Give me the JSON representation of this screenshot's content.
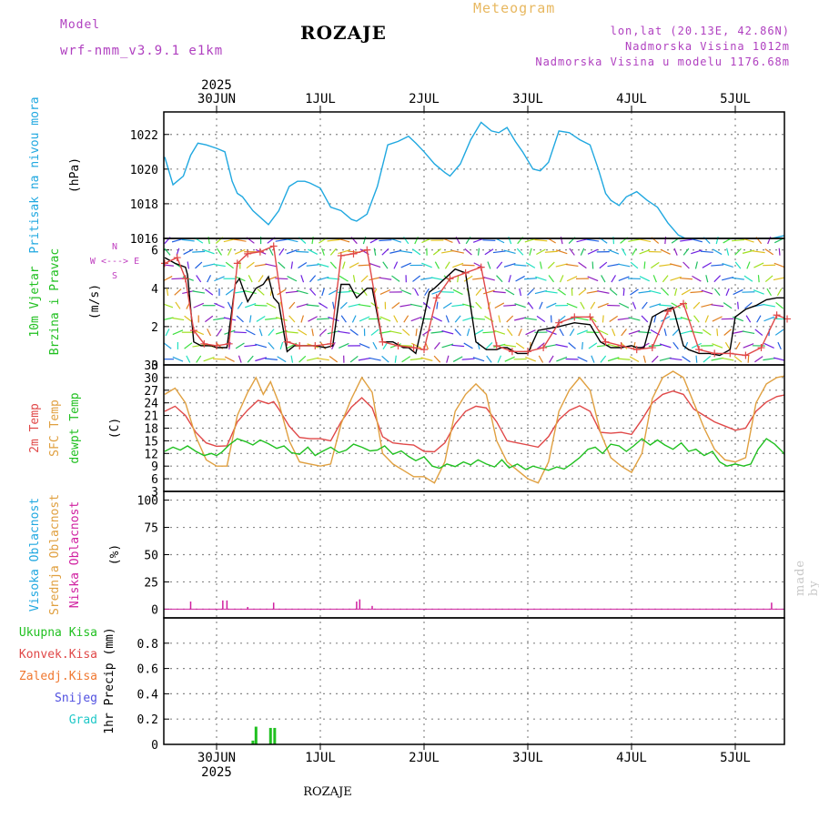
{
  "header": {
    "model_label": "Model",
    "model_name": "wrf-nmm_v3.9.1 e1km",
    "station": "ROZAJE",
    "product": "Meteogram",
    "coords": "lon,lat (20.13E, 42.86N)",
    "altitude": "Nadmorska Visina 1012m",
    "model_altitude": "Nadmorska Visina u modelu 1176.68m",
    "credit": "made by Angel"
  },
  "time_axis": {
    "year": "2025",
    "day_labels": [
      "30JUN",
      "1JUL",
      "2JUL",
      "3JUL",
      "4JUL",
      "5JUL"
    ]
  },
  "footer": {
    "station": "ROZAJE"
  },
  "colors": {
    "pressure": "#20a8e0",
    "t2m": "#e04848",
    "sfc": "#e0a040",
    "dewpoint": "#20c020",
    "high_cloud": "#20a8e0",
    "mid_cloud": "#e0a040",
    "low_cloud": "#d020a0",
    "total_precip": "#20c020",
    "conv_precip": "#e04848",
    "frz_precip": "#f07830",
    "snow": "#5050e0",
    "hail": "#20c8c8",
    "wind_label": "#20c020",
    "compass": "#c040c0"
  },
  "chart_data": [
    {
      "id": "pressure",
      "type": "line",
      "ylabel_lines": [
        "Pritisak na nivou mora",
        "(hPa)"
      ],
      "ylim": [
        1016,
        1023.3
      ],
      "yticks": [
        1016,
        1018,
        1020,
        1022
      ],
      "series": [
        {
          "color_key": "pressure",
          "x": [
            -0.5,
            -0.42,
            -0.38,
            -0.32,
            -0.25,
            -0.18,
            -0.1,
            0,
            0.08,
            0.15,
            0.2,
            0.25,
            0.35,
            0.5,
            0.6,
            0.7,
            0.78,
            0.85,
            0.9,
            1.0,
            1.1,
            1.2,
            1.3,
            1.35,
            1.45,
            1.55,
            1.65,
            1.75,
            1.85,
            1.92,
            2.0,
            2.1,
            2.2,
            2.25,
            2.35,
            2.45,
            2.55,
            2.65,
            2.72,
            2.8,
            2.88,
            2.95,
            3.05,
            3.12,
            3.2,
            3.3,
            3.4,
            3.5,
            3.6,
            3.68,
            3.75,
            3.8,
            3.88,
            3.95,
            4.05,
            4.15,
            4.25,
            4.35,
            4.45,
            4.52,
            4.6,
            4.7,
            4.75,
            4.85,
            4.95,
            5.05,
            5.15,
            5.25,
            5.35,
            5.5
          ],
          "y": [
            1020.7,
            1019.1,
            1019.3,
            1019.6,
            1020.8,
            1021.5,
            1021.4,
            1021.2,
            1021.0,
            1019.3,
            1018.6,
            1018.4,
            1017.6,
            1016.8,
            1017.6,
            1019.0,
            1019.3,
            1019.3,
            1019.2,
            1018.9,
            1017.8,
            1017.6,
            1017.1,
            1017.0,
            1017.4,
            1019.0,
            1021.4,
            1021.6,
            1021.9,
            1021.5,
            1021.0,
            1020.3,
            1019.8,
            1019.6,
            1020.3,
            1021.7,
            1022.7,
            1022.2,
            1022.1,
            1022.4,
            1021.6,
            1021.0,
            1020.0,
            1019.9,
            1020.4,
            1022.2,
            1022.1,
            1021.7,
            1021.4,
            1020.0,
            1018.6,
            1018.2,
            1017.9,
            1018.4,
            1018.7,
            1018.2,
            1017.8,
            1016.9,
            1016.2,
            1016.0,
            1016.0,
            1016.0,
            1016.0,
            1016.0,
            1016.0,
            1016.0,
            1016.0,
            1016.0,
            1016.0,
            1016.2
          ]
        }
      ]
    },
    {
      "id": "wind",
      "type": "line",
      "ylabel_lines": [
        "10m Vjetar",
        "Brzina i Pravac",
        "(m/s)"
      ],
      "compass": [
        "N",
        "W <---> E",
        "S"
      ],
      "ylim": [
        0,
        6.6
      ],
      "yticks": [
        0,
        2,
        4,
        6
      ],
      "barb_levels": [
        0.3,
        1.0,
        1.7,
        2.4,
        3.1,
        3.8,
        4.5,
        5.2,
        5.9,
        6.5
      ],
      "series": [
        {
          "color_key": "black",
          "x": [
            -0.5,
            -0.4,
            -0.3,
            -0.28,
            -0.22,
            -0.15,
            -0.05,
            0,
            0.1,
            0.18,
            0.22,
            0.3,
            0.38,
            0.45,
            0.5,
            0.55,
            0.6,
            0.68,
            0.75,
            0.85,
            0.95,
            1.05,
            1.12,
            1.2,
            1.28,
            1.35,
            1.45,
            1.5,
            1.6,
            1.7,
            1.8,
            1.85,
            1.92,
            2.0,
            2.05,
            2.1,
            2.2,
            2.3,
            2.4,
            2.5,
            2.6,
            2.7,
            2.75,
            2.8,
            2.9,
            3.0,
            3.1,
            3.2,
            3.3,
            3.45,
            3.6,
            3.7,
            3.8,
            3.9,
            4.0,
            4.05,
            4.12,
            4.2,
            4.3,
            4.4,
            4.5,
            4.55,
            4.65,
            4.75,
            4.85,
            4.95,
            5.0,
            5.1,
            5.2,
            5.3,
            5.4,
            5.5
          ],
          "y": [
            5.6,
            5.3,
            5.1,
            4.7,
            1.2,
            1.0,
            1.0,
            0.9,
            0.9,
            4.2,
            4.5,
            3.3,
            4.0,
            4.2,
            4.6,
            3.5,
            3.2,
            0.7,
            1.0,
            1.0,
            1.0,
            0.9,
            1.0,
            4.2,
            4.2,
            3.5,
            4.0,
            4.0,
            1.2,
            1.2,
            0.9,
            0.9,
            0.6,
            2.5,
            3.8,
            4.0,
            4.5,
            5.0,
            4.8,
            1.2,
            0.8,
            0.8,
            0.9,
            0.9,
            0.6,
            0.6,
            1.8,
            1.9,
            2.0,
            2.2,
            2.1,
            1.2,
            0.9,
            0.9,
            1.0,
            0.9,
            0.9,
            2.5,
            2.8,
            3.0,
            1.0,
            0.8,
            0.6,
            0.6,
            0.5,
            0.8,
            2.5,
            2.9,
            3.1,
            3.4,
            3.5,
            3.5
          ]
        },
        {
          "color_key": "t2m",
          "x": [
            -0.5,
            -0.38,
            -0.3,
            -0.22,
            -0.12,
            0,
            0.12,
            0.2,
            0.3,
            0.42,
            0.55,
            0.68,
            0.8,
            0.95,
            1.1,
            1.2,
            1.32,
            1.45,
            1.6,
            1.75,
            1.9,
            2.0,
            2.12,
            2.25,
            2.4,
            2.55,
            2.7,
            2.85,
            3.0,
            3.15,
            3.3,
            3.45,
            3.6,
            3.75,
            3.9,
            4.05,
            4.2,
            4.35,
            4.5,
            4.65,
            4.8,
            4.95,
            5.1,
            5.25,
            5.4,
            5.5
          ],
          "y": [
            5.3,
            5.6,
            4.5,
            1.8,
            1.1,
            1.0,
            1.1,
            5.3,
            5.8,
            5.9,
            6.2,
            1.2,
            1.0,
            1.0,
            1.1,
            5.7,
            5.8,
            6.0,
            1.2,
            1.0,
            0.9,
            0.8,
            3.5,
            4.5,
            4.8,
            5.1,
            1.0,
            0.7,
            0.7,
            0.9,
            2.2,
            2.5,
            2.5,
            1.2,
            1.0,
            0.8,
            0.9,
            2.8,
            3.2,
            0.8,
            0.6,
            0.6,
            0.5,
            0.9,
            2.6,
            2.4
          ]
        }
      ]
    },
    {
      "id": "temperature",
      "type": "line",
      "ylabel_lines": [
        "2m Temp",
        "SFC Temp",
        "dewpt Temp",
        "(C)"
      ],
      "ylim": [
        3,
        33
      ],
      "yticks": [
        3,
        6,
        9,
        12,
        15,
        18,
        21,
        24,
        27,
        30,
        33
      ],
      "series": [
        {
          "name": "2m Temp",
          "color_key": "t2m",
          "x": [
            -0.5,
            -0.4,
            -0.3,
            -0.2,
            -0.1,
            0,
            0.1,
            0.2,
            0.3,
            0.4,
            0.5,
            0.55,
            0.6,
            0.7,
            0.8,
            0.9,
            1.0,
            1.1,
            1.2,
            1.3,
            1.4,
            1.5,
            1.6,
            1.7,
            1.8,
            1.9,
            2.0,
            2.1,
            2.2,
            2.3,
            2.4,
            2.5,
            2.6,
            2.7,
            2.8,
            2.9,
            3.0,
            3.1,
            3.2,
            3.3,
            3.4,
            3.5,
            3.6,
            3.7,
            3.8,
            3.9,
            4.0,
            4.1,
            4.2,
            4.3,
            4.4,
            4.5,
            4.6,
            4.7,
            4.8,
            4.9,
            5.0,
            5.1,
            5.2,
            5.3,
            5.4,
            5.5
          ],
          "y": [
            22,
            23.2,
            21,
            17,
            14.5,
            13.7,
            13.8,
            19.5,
            22.3,
            24.6,
            23.8,
            24.3,
            22.5,
            18.5,
            15.8,
            15.5,
            15.5,
            15,
            19.5,
            23,
            25.2,
            22.8,
            16,
            14.5,
            14.2,
            14,
            12.5,
            12.4,
            14.5,
            19,
            22,
            23.2,
            22.8,
            19.5,
            15,
            14.5,
            14,
            13.5,
            16,
            20,
            22.2,
            23.3,
            22,
            17,
            16.8,
            17,
            16.5,
            20,
            24,
            26,
            26.8,
            26,
            22.5,
            21,
            19.5,
            18.5,
            17.5,
            18,
            22,
            24.2,
            25.5,
            26
          ]
        },
        {
          "name": "SFC Temp",
          "color_key": "sfc",
          "x": [
            -0.5,
            -0.4,
            -0.3,
            -0.2,
            -0.1,
            0,
            0.1,
            0.2,
            0.3,
            0.38,
            0.45,
            0.52,
            0.6,
            0.7,
            0.8,
            0.9,
            1.0,
            1.1,
            1.2,
            1.3,
            1.4,
            1.5,
            1.6,
            1.7,
            1.8,
            1.9,
            2.0,
            2.1,
            2.2,
            2.3,
            2.4,
            2.5,
            2.6,
            2.7,
            2.8,
            2.9,
            3.0,
            3.1,
            3.2,
            3.3,
            3.4,
            3.5,
            3.6,
            3.7,
            3.8,
            3.9,
            4.0,
            4.1,
            4.2,
            4.3,
            4.4,
            4.5,
            4.6,
            4.7,
            4.8,
            4.9,
            5.0,
            5.1,
            5.2,
            5.3,
            5.4,
            5.5
          ],
          "y": [
            26,
            27.5,
            24,
            16,
            10.5,
            9,
            9,
            21,
            26.5,
            30,
            26,
            29,
            24,
            15,
            10,
            9.5,
            9,
            9.5,
            19,
            25,
            30,
            26.5,
            12,
            9.5,
            8,
            6.5,
            6.5,
            5,
            10,
            22,
            26,
            28.5,
            26,
            15,
            10,
            8,
            6,
            5,
            10,
            22,
            27,
            30,
            27,
            17,
            11,
            9,
            7.5,
            12,
            25,
            30,
            31.5,
            30,
            24,
            18,
            13,
            10.5,
            10,
            11,
            24,
            28.5,
            30,
            30.5
          ]
        },
        {
          "name": "dewpt Temp",
          "color_key": "dewpoint",
          "x": [
            -0.5,
            -0.42,
            -0.35,
            -0.28,
            -0.2,
            -0.12,
            -0.05,
            0,
            0.05,
            0.12,
            0.2,
            0.28,
            0.35,
            0.42,
            0.5,
            0.58,
            0.65,
            0.72,
            0.8,
            0.88,
            0.95,
            1.02,
            1.1,
            1.18,
            1.25,
            1.32,
            1.4,
            1.48,
            1.55,
            1.62,
            1.7,
            1.78,
            1.85,
            1.92,
            2.0,
            2.08,
            2.15,
            2.22,
            2.3,
            2.38,
            2.45,
            2.52,
            2.6,
            2.68,
            2.75,
            2.82,
            2.9,
            2.98,
            3.05,
            3.12,
            3.2,
            3.28,
            3.35,
            3.42,
            3.5,
            3.58,
            3.65,
            3.72,
            3.8,
            3.88,
            3.95,
            4.02,
            4.1,
            4.18,
            4.25,
            4.32,
            4.4,
            4.48,
            4.55,
            4.62,
            4.7,
            4.78,
            4.85,
            4.92,
            5.0,
            5.08,
            5.15,
            5.22,
            5.3,
            5.38,
            5.45,
            5.5
          ],
          "y": [
            12.5,
            13.5,
            12.8,
            13.8,
            12.5,
            11.5,
            12,
            11.5,
            12.3,
            14,
            15.5,
            14.8,
            14,
            15.2,
            14.3,
            13.2,
            13.8,
            12.2,
            11.8,
            13.5,
            11.5,
            12.5,
            13.5,
            12.2,
            12.8,
            14.2,
            13.5,
            12.6,
            12.8,
            13.8,
            11.8,
            12.6,
            11.3,
            10.3,
            11.2,
            9,
            8.5,
            9.5,
            8.9,
            10,
            9.3,
            10.5,
            9.5,
            8.8,
            10.5,
            8.6,
            9.5,
            8.2,
            9,
            8.5,
            8,
            8.8,
            8.3,
            9.5,
            11,
            13,
            13.5,
            12,
            14.2,
            13.8,
            12.5,
            13.8,
            15.5,
            14,
            15.2,
            14,
            13,
            14.5,
            12.5,
            13,
            11.5,
            12.5,
            10,
            9,
            9.5,
            9,
            9.5,
            13,
            15.5,
            14.2,
            12.5,
            11
          ]
        }
      ]
    },
    {
      "id": "cloud",
      "type": "bar",
      "ylabel_lines": [
        "Visoka Oblacnost",
        "Srednja Oblacnost",
        "Niska Oblacnost",
        "(%)"
      ],
      "ylim": [
        -8,
        108
      ],
      "yticks": [
        0,
        25,
        50,
        75,
        100
      ],
      "series": [
        {
          "name": "Niska Oblacnost",
          "color_key": "low_cloud",
          "x": [
            -0.25,
            0.06,
            0.1,
            0.3,
            0.55,
            1.35,
            1.38,
            1.5,
            5.35
          ],
          "values": [
            7,
            8,
            8,
            2,
            6,
            7,
            9,
            3,
            6
          ]
        }
      ]
    },
    {
      "id": "precip",
      "type": "bar",
      "ylabel_lines": [
        "Ukupna Kisa",
        "Konvek.Kisa",
        "Zaledj.Kisa",
        "Snijeg",
        "Grad",
        "1hr Precip (mm)"
      ],
      "ylim": [
        0,
        1.0
      ],
      "yticks": [
        0,
        0.2,
        0.4,
        0.6,
        0.8
      ],
      "series": [
        {
          "name": "Ukupna Kisa",
          "color_key": "total_precip",
          "x": [
            0.35,
            0.38,
            0.52,
            0.56
          ],
          "values": [
            0.03,
            0.14,
            0.13,
            0.13
          ]
        }
      ]
    }
  ]
}
